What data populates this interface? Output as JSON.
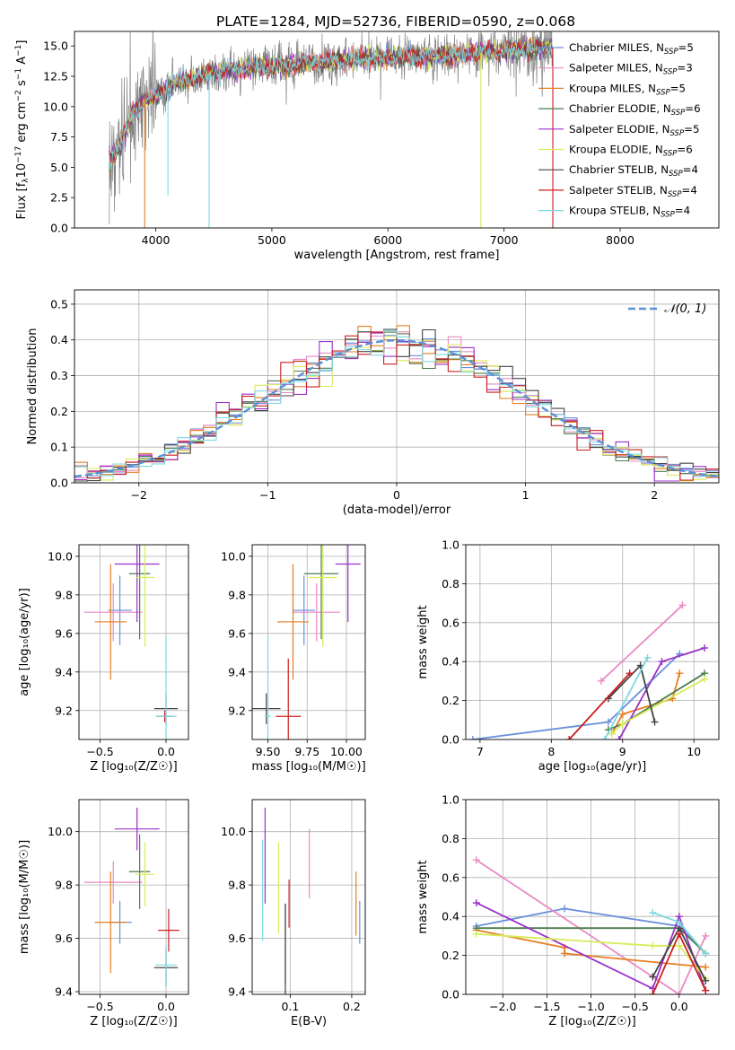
{
  "title": "PLATE=1284, MJD=52736, FIBERID=0590, z=0.068",
  "legend_models": [
    {
      "name": "Chabrier MILES",
      "n": "5",
      "color": "#6a8fdc"
    },
    {
      "name": "Salpeter MILES",
      "n": "3",
      "color": "#e98ac5"
    },
    {
      "name": "Kroupa MILES",
      "n": "5",
      "color": "#e67e22"
    },
    {
      "name": "Chabrier ELODIE",
      "n": "6",
      "color": "#4d7d4d"
    },
    {
      "name": "Salpeter ELODIE",
      "n": "5",
      "color": "#9b30c8"
    },
    {
      "name": "Kroupa ELODIE",
      "n": "6",
      "color": "#d6ec5a"
    },
    {
      "name": "Chabrier STELIB",
      "n": "4",
      "color": "#444444"
    },
    {
      "name": "Salpeter STELIB",
      "n": "4",
      "color": "#cc1f1f"
    },
    {
      "name": "Kroupa STELIB",
      "n": "4",
      "color": "#7fd8e0"
    }
  ],
  "nssp_prefix": "N",
  "nssp_sub": "SSP",
  "hist_legend": "𝒩(0, 1)",
  "chart_data": [
    {
      "id": "spectrum",
      "type": "line",
      "xlabel": "wavelength [Angstrom, rest frame]",
      "ylabel_parts": [
        "Flux [f",
        "λ",
        "10",
        "−17",
        " erg cm",
        "−2",
        " s",
        "−1",
        " A",
        "−1",
        "]"
      ],
      "xlim": [
        3300,
        8850
      ],
      "ylim": [
        0,
        16.2
      ],
      "xticks": [
        4000,
        5000,
        6000,
        7000,
        8000
      ],
      "yticks": [
        0.0,
        2.5,
        5.0,
        7.5,
        10.0,
        12.5,
        15.0
      ],
      "continuum": {
        "x": [
          3600,
          3700,
          3800,
          3900,
          4000,
          4100,
          4200,
          4500,
          4800,
          5000,
          5500,
          6000,
          6500,
          7000,
          7400
        ],
        "y": [
          5.5,
          7.0,
          9.5,
          10.5,
          10.8,
          11.5,
          12.0,
          12.8,
          13.2,
          13.3,
          13.8,
          14.0,
          14.2,
          14.6,
          14.9
        ]
      }
    },
    {
      "id": "residuals",
      "type": "bar",
      "xlabel": "(data-model)/error",
      "ylabel": "Normed distribution",
      "xlim": [
        -2.5,
        2.5
      ],
      "ylim": [
        0,
        0.54
      ],
      "xticks": [
        -2,
        -1,
        0,
        1,
        2
      ],
      "yticks": [
        0.0,
        0.1,
        0.2,
        0.3,
        0.4,
        0.5
      ],
      "bin_width": 0.1,
      "series_spread": [
        0.006,
        0.009,
        0.012,
        0.008,
        0.016,
        0.01,
        0.011,
        0.015,
        0.007
      ]
    },
    {
      "id": "age_vs_Z",
      "type": "scatter",
      "xlabel": "Z [log₁₀(Z/Z☉)]",
      "ylabel": "age  [log₁₀(age/yr)]",
      "xlim": [
        -0.66,
        0.17
      ],
      "ylim": [
        9.05,
        10.06
      ],
      "xticks": [
        -0.5,
        0.0
      ],
      "yticks": [
        9.2,
        9.4,
        9.6,
        9.8,
        10.0
      ],
      "points": [
        {
          "c": "#6a8fdc",
          "x": -0.35,
          "y": 9.72,
          "xe": 0.09,
          "ye": 0.18
        },
        {
          "c": "#e98ac5",
          "x": -0.4,
          "y": 9.71,
          "xe": 0.22,
          "ye": 0.15
        },
        {
          "c": "#e67e22",
          "x": -0.42,
          "y": 9.66,
          "xe": 0.12,
          "ye": 0.3
        },
        {
          "c": "#4d7d4d",
          "x": -0.2,
          "y": 9.91,
          "xe": 0.08,
          "ye": 0.34
        },
        {
          "c": "#9b30c8",
          "x": -0.22,
          "y": 9.96,
          "xe": 0.17,
          "ye": 0.3
        },
        {
          "c": "#d6ec5a",
          "x": -0.16,
          "y": 9.89,
          "xe": 0.07,
          "ye": 0.36
        },
        {
          "c": "#444444",
          "x": 0.0,
          "y": 9.21,
          "xe": 0.09,
          "ye": 0.08
        },
        {
          "c": "#cc1f1f",
          "x": -0.01,
          "y": 9.17,
          "xe": 0.06,
          "ye": 0.03
        },
        {
          "c": "#7fd8e0",
          "x": 0.0,
          "y": 9.17,
          "xe": 0.08,
          "ye": 0.42
        }
      ]
    },
    {
      "id": "age_vs_mass",
      "type": "scatter",
      "xlabel": "mass [log₁₀(M/M☉)]",
      "ylabel": "",
      "xlim": [
        9.4,
        10.12
      ],
      "ylim": [
        9.05,
        10.06
      ],
      "xticks": [
        9.5,
        9.75,
        10.0
      ],
      "yticks": [
        9.2,
        9.4,
        9.6,
        9.8,
        10.0
      ],
      "points": [
        {
          "c": "#6a8fdc",
          "x": 9.73,
          "y": 9.72,
          "xe": 0.07,
          "ye": 0.18
        },
        {
          "c": "#e98ac5",
          "x": 9.81,
          "y": 9.71,
          "xe": 0.15,
          "ye": 0.15
        },
        {
          "c": "#e67e22",
          "x": 9.66,
          "y": 9.66,
          "xe": 0.1,
          "ye": 0.3
        },
        {
          "c": "#4d7d4d",
          "x": 9.84,
          "y": 9.91,
          "xe": 0.11,
          "ye": 0.34
        },
        {
          "c": "#9b30c8",
          "x": 10.01,
          "y": 9.96,
          "xe": 0.08,
          "ye": 0.3
        },
        {
          "c": "#d6ec5a",
          "x": 9.85,
          "y": 9.89,
          "xe": 0.09,
          "ye": 0.36
        },
        {
          "c": "#444444",
          "x": 9.49,
          "y": 9.21,
          "xe": 0.09,
          "ye": 0.08
        },
        {
          "c": "#cc1f1f",
          "x": 9.63,
          "y": 9.17,
          "xe": 0.08,
          "ye": 0.3
        },
        {
          "c": "#7fd8e0",
          "x": 9.5,
          "y": 9.17,
          "xe": 0.02,
          "ye": 0.42
        }
      ]
    },
    {
      "id": "weight_vs_age",
      "type": "line",
      "xlabel": "age  [log₁₀(age/yr)]",
      "ylabel": "mass weight",
      "xlim": [
        6.8,
        10.35
      ],
      "ylim": [
        0,
        1.0
      ],
      "xticks": [
        7,
        8,
        9,
        10
      ],
      "yticks": [
        0.0,
        0.2,
        0.4,
        0.6,
        0.8,
        1.0
      ],
      "series": [
        {
          "c": "#6a8fdc",
          "x": [
            6.9,
            8.8,
            9.8
          ],
          "y": [
            0.0,
            0.09,
            0.44
          ]
        },
        {
          "c": "#e98ac5",
          "x": [
            8.7,
            9.84
          ],
          "y": [
            0.3,
            0.69
          ]
        },
        {
          "c": "#e67e22",
          "x": [
            8.85,
            9.0,
            9.7,
            9.8
          ],
          "y": [
            0.03,
            0.13,
            0.21,
            0.34
          ]
        },
        {
          "c": "#4d7d4d",
          "x": [
            8.8,
            9.0,
            10.15
          ],
          "y": [
            0.05,
            0.08,
            0.34
          ]
        },
        {
          "c": "#9b30c8",
          "x": [
            8.95,
            9.55,
            10.15
          ],
          "y": [
            0.0,
            0.4,
            0.47
          ]
        },
        {
          "c": "#d6ec5a",
          "x": [
            8.85,
            9.0,
            10.15
          ],
          "y": [
            0.03,
            0.08,
            0.31
          ]
        },
        {
          "c": "#444444",
          "x": [
            8.8,
            9.25,
            9.45
          ],
          "y": [
            0.21,
            0.38,
            0.09
          ]
        },
        {
          "c": "#cc1f1f",
          "x": [
            8.25,
            9.1
          ],
          "y": [
            0.0,
            0.34
          ]
        },
        {
          "c": "#7fd8e0",
          "x": [
            8.75,
            9.35
          ],
          "y": [
            0.0,
            0.42
          ]
        }
      ]
    },
    {
      "id": "mass_vs_Z",
      "type": "scatter",
      "xlabel": "Z [log₁₀(Z/Z☉)]",
      "ylabel": "mass [log₁₀(M/M☉)]",
      "xlim": [
        -0.66,
        0.17
      ],
      "ylim": [
        9.39,
        10.12
      ],
      "xticks": [
        -0.5,
        0.0
      ],
      "yticks": [
        9.4,
        9.6,
        9.8,
        10.0
      ],
      "points": [
        {
          "c": "#6a8fdc",
          "x": -0.35,
          "y": 9.66,
          "xe": 0.09,
          "ye": 0.08
        },
        {
          "c": "#e98ac5",
          "x": -0.4,
          "y": 9.81,
          "xe": 0.22,
          "ye": 0.08
        },
        {
          "c": "#e67e22",
          "x": -0.42,
          "y": 9.66,
          "xe": 0.12,
          "ye": 0.19
        },
        {
          "c": "#4d7d4d",
          "x": -0.2,
          "y": 9.85,
          "xe": 0.08,
          "ye": 0.14
        },
        {
          "c": "#9b30c8",
          "x": -0.22,
          "y": 10.01,
          "xe": 0.17,
          "ye": 0.08
        },
        {
          "c": "#d6ec5a",
          "x": -0.16,
          "y": 9.84,
          "xe": 0.07,
          "ye": 0.12
        },
        {
          "c": "#444444",
          "x": 0.0,
          "y": 9.49,
          "xe": 0.09,
          "ye": 0.07
        },
        {
          "c": "#cc1f1f",
          "x": 0.02,
          "y": 9.63,
          "xe": 0.08,
          "ye": 0.08
        },
        {
          "c": "#7fd8e0",
          "x": 0.0,
          "y": 9.5,
          "xe": 0.08,
          "ye": 0.08
        }
      ]
    },
    {
      "id": "mass_vs_ebv",
      "type": "scatter",
      "xlabel": "E(B-V)",
      "ylabel": "",
      "xlim": [
        0.038,
        0.222
      ],
      "ylim": [
        9.39,
        10.12
      ],
      "xticks": [
        0.1,
        0.2
      ],
      "yticks": [
        9.4,
        9.6,
        9.8,
        10.0
      ],
      "points": [
        {
          "c": "#6a8fdc",
          "x": 0.213,
          "y": 9.66,
          "xe": 0,
          "ye": 0.08
        },
        {
          "c": "#e98ac5",
          "x": 0.131,
          "y": 9.88,
          "xe": 0,
          "ye": 0.13
        },
        {
          "c": "#e67e22",
          "x": 0.207,
          "y": 9.73,
          "xe": 0,
          "ye": 0.12
        },
        {
          "c": "#4d7d4d",
          "x": 0.092,
          "y": 9.58,
          "xe": 0,
          "ye": 0.15
        },
        {
          "c": "#9b30c8",
          "x": 0.059,
          "y": 9.91,
          "xe": 0,
          "ye": 0.18
        },
        {
          "c": "#d6ec5a",
          "x": 0.081,
          "y": 9.79,
          "xe": 0,
          "ye": 0.17
        },
        {
          "c": "#444444",
          "x": 0.092,
          "y": 9.55,
          "xe": 0,
          "ye": 0.18
        },
        {
          "c": "#cc1f1f",
          "x": 0.098,
          "y": 9.73,
          "xe": 0,
          "ye": 0.09
        },
        {
          "c": "#7fd8e0",
          "x": 0.055,
          "y": 9.78,
          "xe": 0,
          "ye": 0.19
        }
      ]
    },
    {
      "id": "weight_vs_Z",
      "type": "line",
      "xlabel": "Z [log₁₀(Z/Z☉)]",
      "ylabel": "mass weight",
      "xlim": [
        -2.42,
        0.45
      ],
      "ylim": [
        0,
        1.0
      ],
      "xticks": [
        -2.0,
        -1.5,
        -1.0,
        -0.5,
        0.0
      ],
      "yticks": [
        0.0,
        0.2,
        0.4,
        0.6,
        0.8,
        1.0
      ],
      "series": [
        {
          "c": "#6a8fdc",
          "x": [
            -2.3,
            -1.3,
            0.0,
            0.3
          ],
          "y": [
            0.35,
            0.44,
            0.35,
            0.21
          ]
        },
        {
          "c": "#e98ac5",
          "x": [
            -2.3,
            0.0,
            0.3
          ],
          "y": [
            0.69,
            0.0,
            0.3
          ]
        },
        {
          "c": "#e67e22",
          "x": [
            -2.3,
            -1.3,
            -1.3,
            0.3
          ],
          "y": [
            0.33,
            0.24,
            0.21,
            0.14
          ]
        },
        {
          "c": "#4d7d4d",
          "x": [
            -2.3,
            0.0,
            0.3
          ],
          "y": [
            0.34,
            0.34,
            0.21
          ]
        },
        {
          "c": "#9b30c8",
          "x": [
            -2.3,
            -0.3,
            0.0,
            0.3
          ],
          "y": [
            0.47,
            0.03,
            0.4,
            0.02
          ]
        },
        {
          "c": "#d6ec5a",
          "x": [
            -2.3,
            -0.3,
            0.0,
            0.3
          ],
          "y": [
            0.31,
            0.25,
            0.25,
            0.08
          ]
        },
        {
          "c": "#444444",
          "x": [
            -0.3,
            0.0,
            0.3
          ],
          "y": [
            0.09,
            0.34,
            0.07
          ]
        },
        {
          "c": "#cc1f1f",
          "x": [
            -0.3,
            0.0,
            0.3
          ],
          "y": [
            0.0,
            0.31,
            0.02
          ]
        },
        {
          "c": "#7fd8e0",
          "x": [
            -0.3,
            0.0,
            0.3
          ],
          "y": [
            0.42,
            0.37,
            0.21
          ]
        }
      ]
    }
  ]
}
